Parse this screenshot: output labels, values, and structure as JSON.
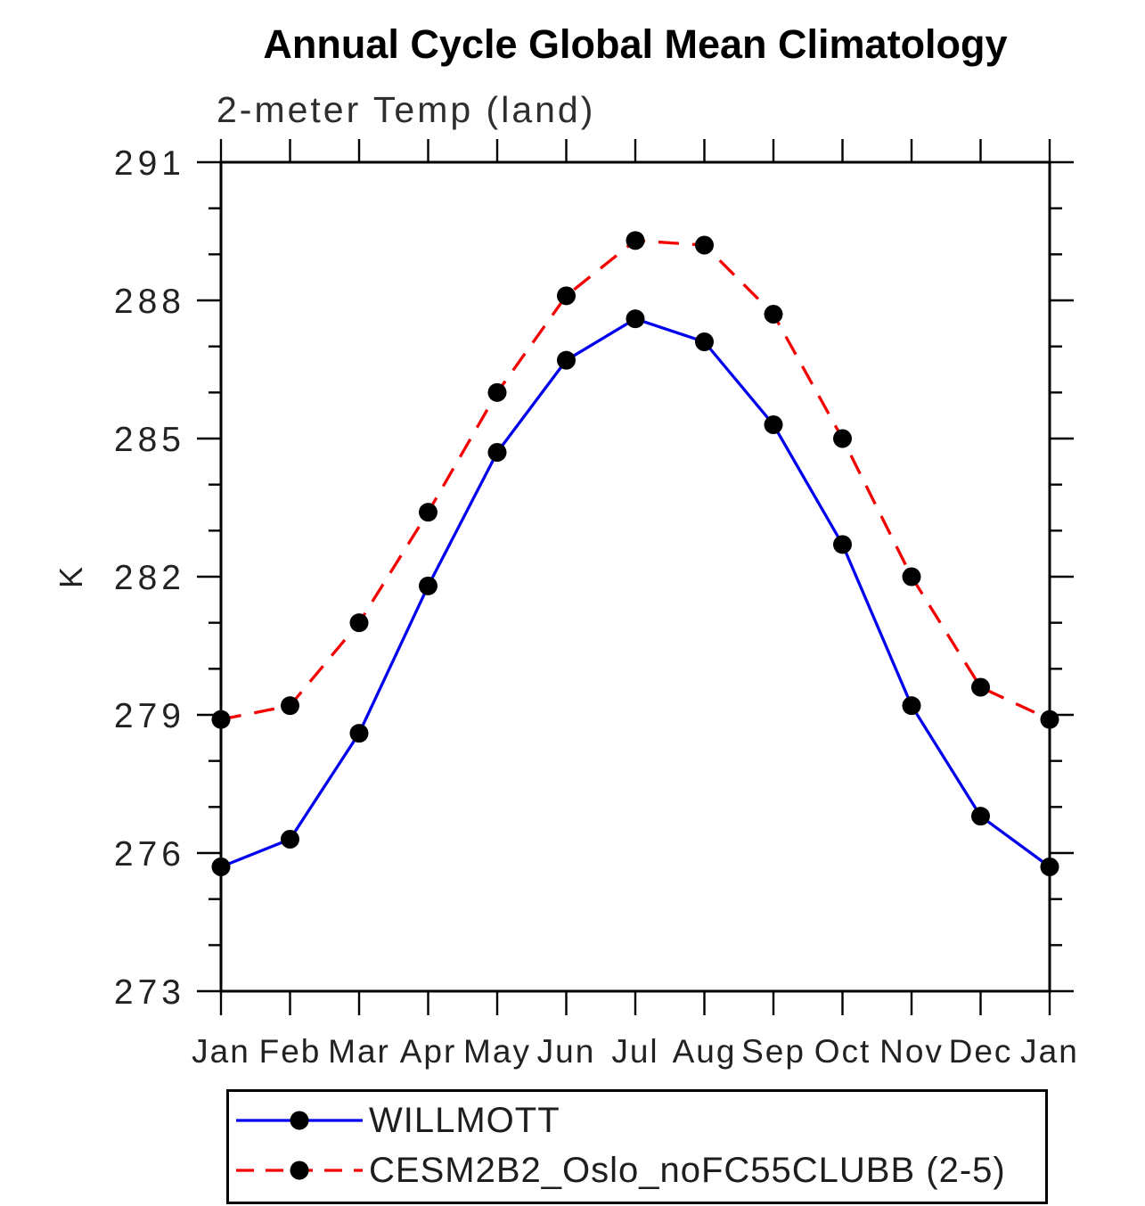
{
  "chart": {
    "title": "Annual Cycle Global Mean Climatology",
    "subtitle": "2-meter Temp (land)",
    "ylabel": "K"
  },
  "chart_data": {
    "type": "line",
    "x_categories": [
      "Jan",
      "Feb",
      "Mar",
      "Apr",
      "May",
      "Jun",
      "Jul",
      "Aug",
      "Sep",
      "Oct",
      "Nov",
      "Dec",
      "Jan"
    ],
    "ylim": [
      273,
      291
    ],
    "ytick_major": [
      273,
      276,
      279,
      282,
      285,
      288,
      291
    ],
    "ytick_minor_step": 1,
    "grid": false,
    "legend_position": "bottom",
    "frame_color": "#000000",
    "marker_color": "#000000",
    "series": [
      {
        "name": "WILLMOTT",
        "color": "#0000ee",
        "style": "solid",
        "marker": "circle",
        "values": [
          275.7,
          276.3,
          278.6,
          281.8,
          284.7,
          286.7,
          287.6,
          287.1,
          285.3,
          282.7,
          279.2,
          276.8,
          275.7
        ]
      },
      {
        "name": "CESM2B2_Oslo_noFC55CLUBB (2-5)",
        "color": "#f40000",
        "style": "dashed",
        "marker": "circle",
        "values": [
          278.9,
          279.2,
          281.0,
          283.4,
          286.0,
          288.1,
          289.3,
          289.2,
          287.7,
          285.0,
          282.0,
          279.6,
          278.9
        ]
      }
    ]
  }
}
